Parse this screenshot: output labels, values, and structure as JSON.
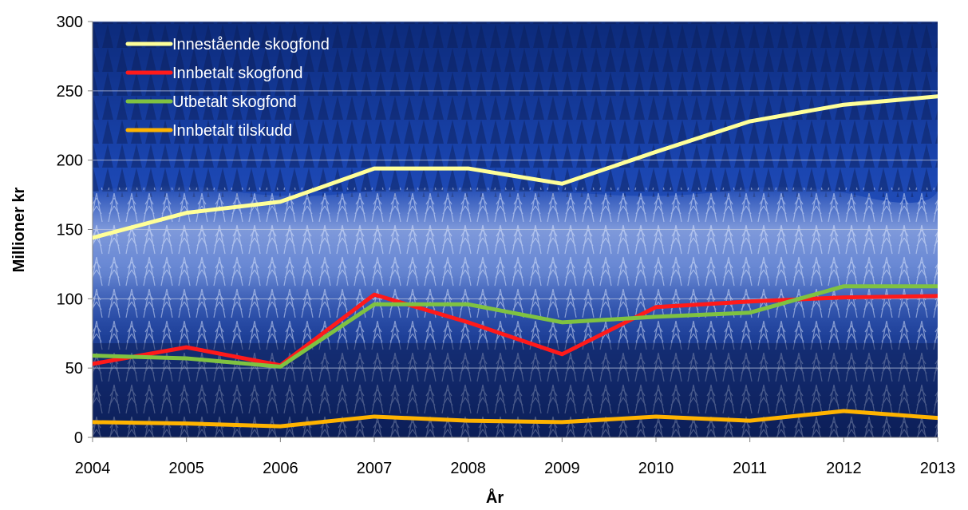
{
  "chart_data": {
    "type": "line",
    "x": [
      "2004",
      "2005",
      "2006",
      "2007",
      "2008",
      "2009",
      "2010",
      "2011",
      "2012",
      "2013"
    ],
    "series": [
      {
        "name": "Innestående skogfond",
        "color": "#ffff99",
        "values": [
          144,
          162,
          170,
          194,
          194,
          183,
          206,
          228,
          240,
          246
        ]
      },
      {
        "name": "Innbetalt skogfond",
        "color": "#ff1a1a",
        "values": [
          53,
          65,
          52,
          103,
          83,
          60,
          94,
          98,
          101,
          102
        ]
      },
      {
        "name": "Utbetalt skogfond",
        "color": "#7fc241",
        "values": [
          59,
          57,
          51,
          96,
          96,
          83,
          87,
          90,
          109,
          109
        ]
      },
      {
        "name": "Innbetalt tilskudd",
        "color": "#ffb300",
        "values": [
          11,
          10,
          8,
          15,
          12,
          11,
          15,
          12,
          19,
          14
        ]
      }
    ],
    "yticks": [
      "0",
      "50",
      "100",
      "150",
      "200",
      "250",
      "300"
    ],
    "ylim": [
      0,
      300
    ],
    "xlabel": "År",
    "ylabel": "Millioner kr",
    "grid": true,
    "legend_position": "top-left",
    "background": "snowy-forest-photo"
  }
}
